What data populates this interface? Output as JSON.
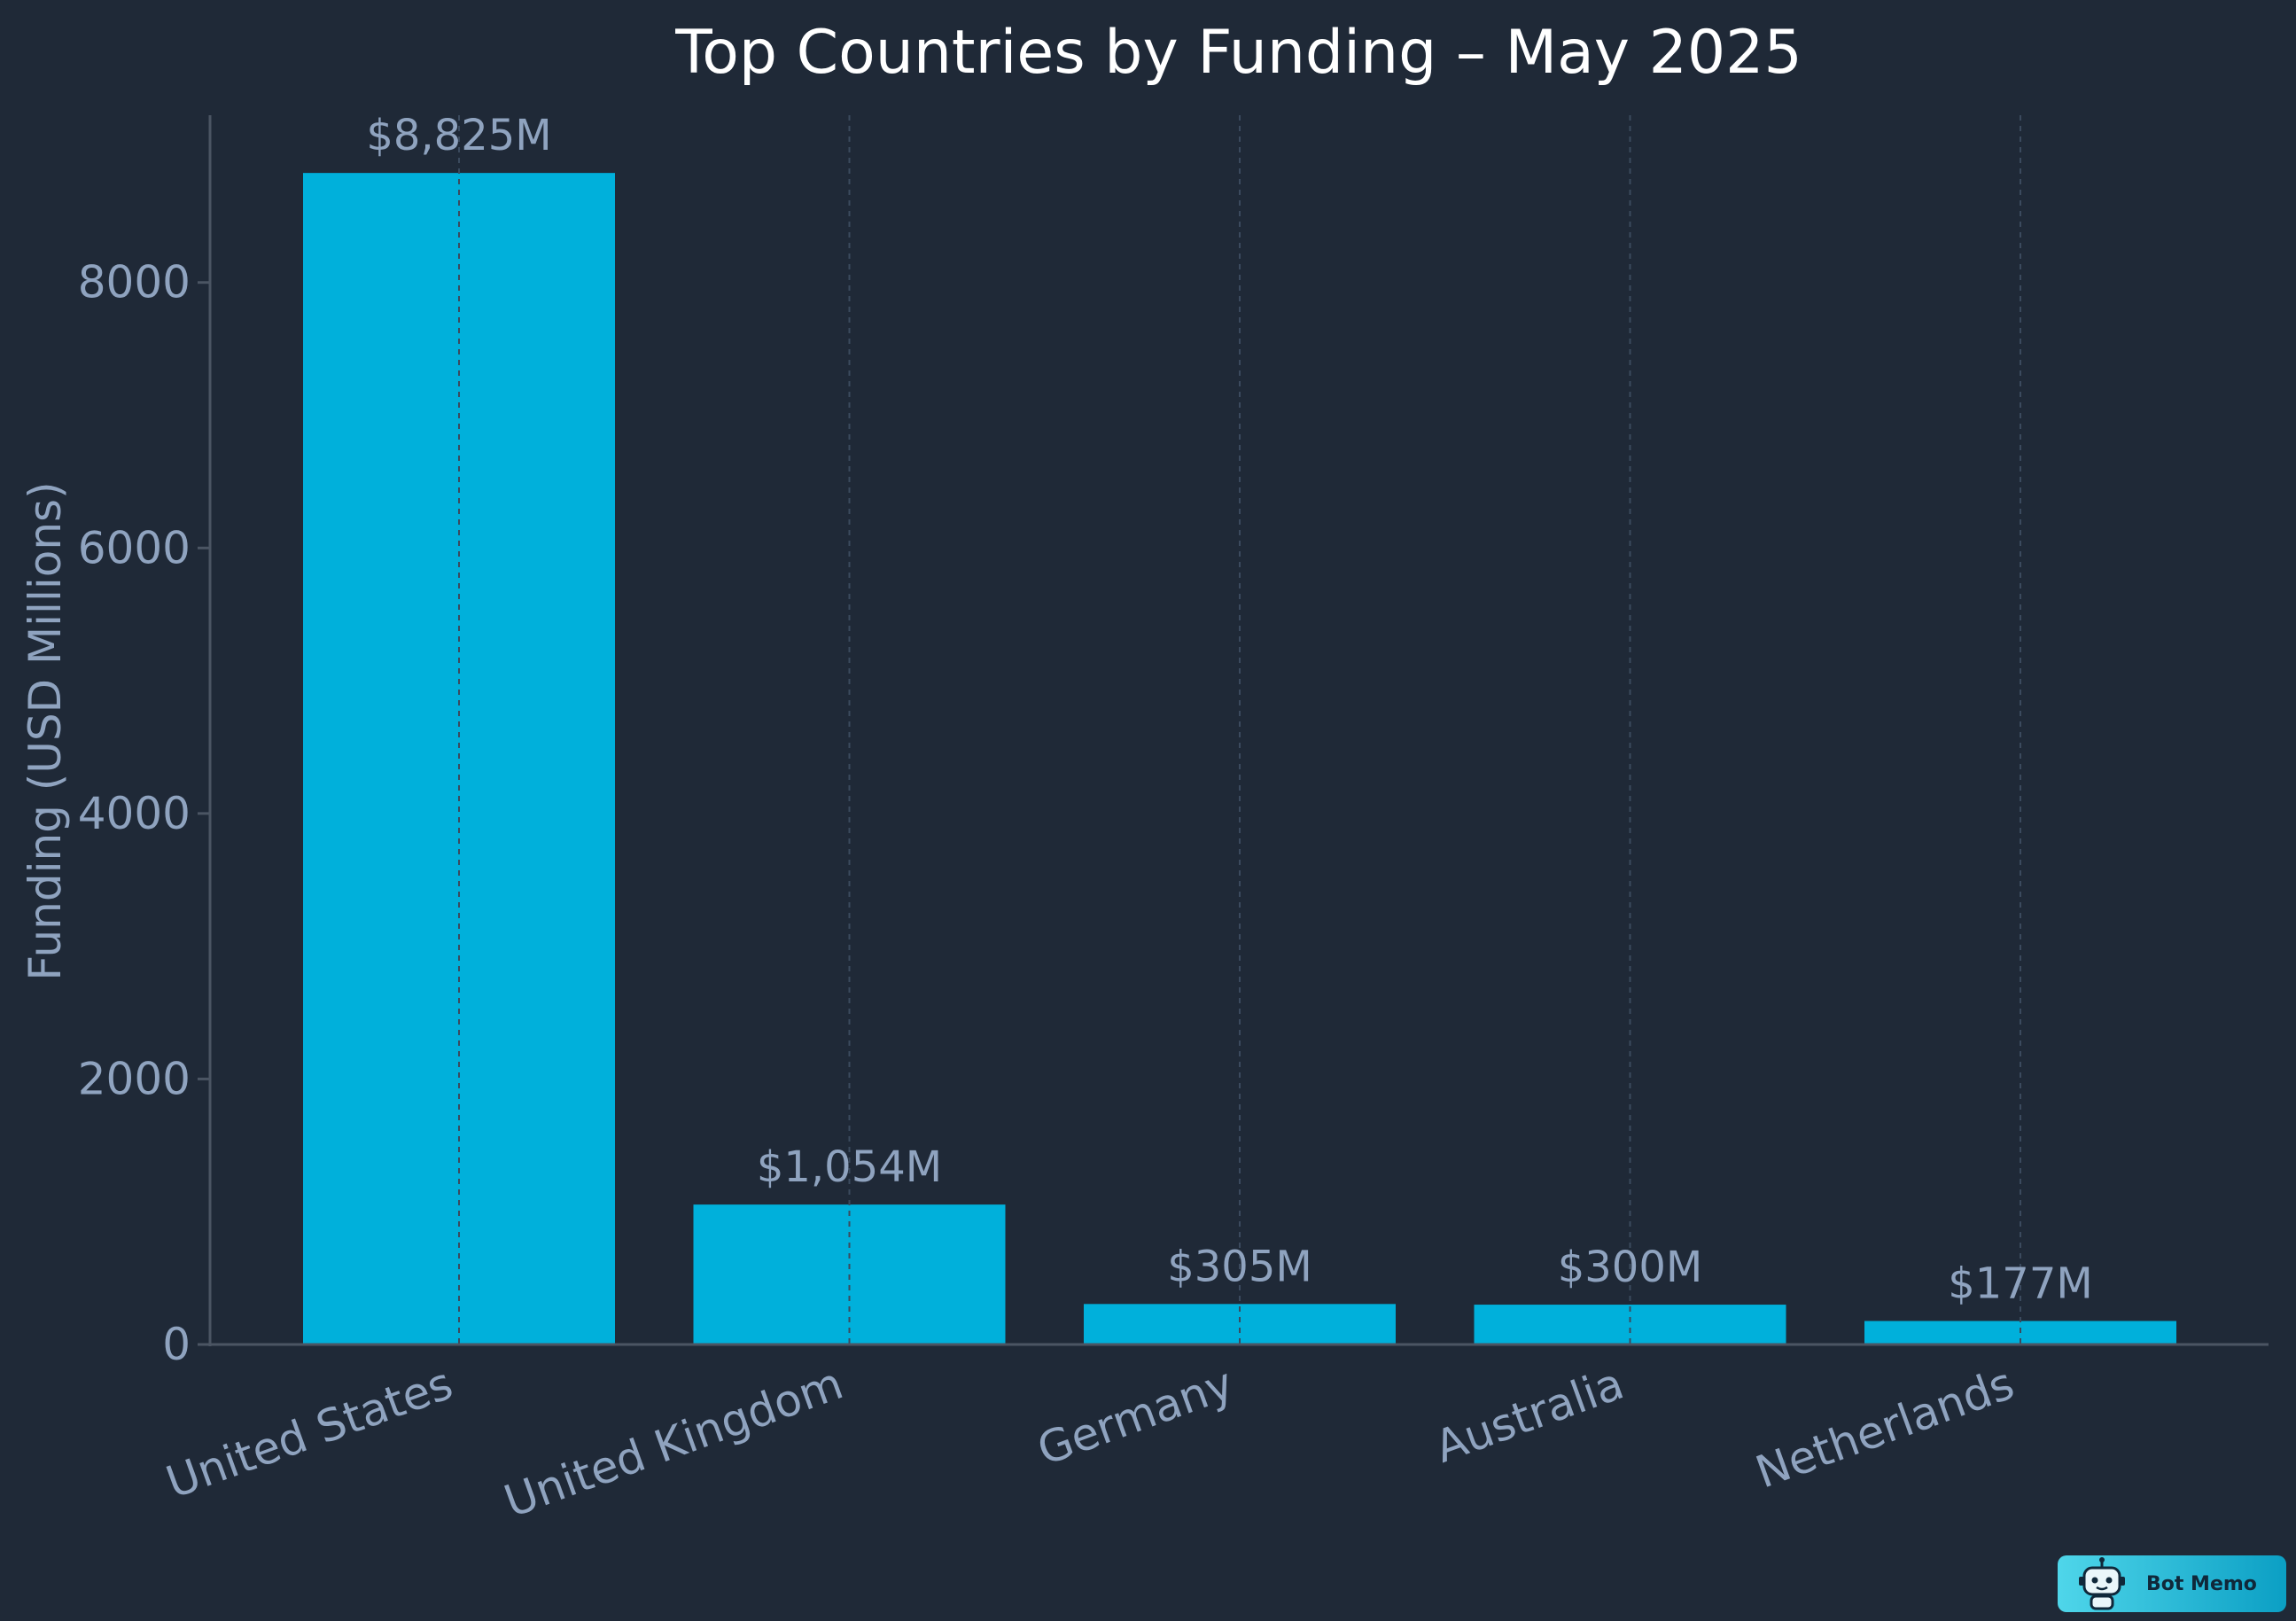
{
  "chart_data": {
    "type": "bar",
    "title": "Top Countries by Funding – May 2025",
    "xlabel": "",
    "ylabel": "Funding (USD Millions)",
    "categories": [
      "United States",
      "United Kingdom",
      "Germany",
      "Australia",
      "Netherlands"
    ],
    "values": [
      8825,
      1054,
      305,
      300,
      177
    ],
    "data_labels": [
      "$8,825M",
      "$1,054M",
      "$305M",
      "$300M",
      "$177M"
    ],
    "ylim": [
      0,
      9260
    ],
    "yticks": [
      0,
      2000,
      4000,
      6000,
      8000
    ],
    "bar_color": "#00b0db",
    "background_color": "#1f2937",
    "grid": "vertical dashed",
    "legend": "none"
  },
  "badge": {
    "text": "Bot Memo",
    "icon": "robot-icon"
  }
}
